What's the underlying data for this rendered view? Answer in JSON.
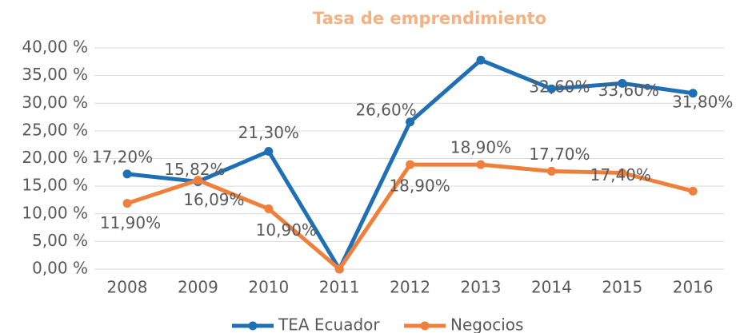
{
  "chart_data": {
    "type": "line",
    "title": "Tasa de emprendimiento",
    "categories": [
      "2008",
      "2009",
      "2010",
      "2011",
      "2012",
      "2013",
      "2014",
      "2015",
      "2016"
    ],
    "series": [
      {
        "name": "TEA Ecuador",
        "color": "#1f6fb5",
        "values": [
          17.2,
          15.82,
          21.3,
          0,
          26.6,
          37.8,
          32.6,
          33.6,
          31.8
        ],
        "value_labels": [
          "17,20%",
          "15,82%",
          "21,30%",
          null,
          "26,60%",
          null,
          "32,60%",
          "33,60%",
          "31,80%"
        ]
      },
      {
        "name": "Negocios",
        "color": "#f07f3c",
        "values": [
          11.9,
          16.09,
          10.9,
          0,
          18.9,
          18.9,
          17.7,
          17.4,
          14.1
        ],
        "value_labels": [
          "11,90%",
          "16,09%",
          "10,90%",
          null,
          "18,90%",
          "18,90%",
          "17,70%",
          "17,40%",
          null
        ]
      }
    ],
    "ylim": [
      0,
      40
    ],
    "yticks": [
      {
        "value": 0,
        "label": "0,00 %"
      },
      {
        "value": 5,
        "label": "5,00 %"
      },
      {
        "value": 10,
        "label": "10,00 %"
      },
      {
        "value": 15,
        "label": "15,00 %"
      },
      {
        "value": 20,
        "label": "20,00 %"
      },
      {
        "value": 25,
        "label": "25,00 %"
      },
      {
        "value": 30,
        "label": "30,00 %"
      },
      {
        "value": 35,
        "label": "35,00 %"
      },
      {
        "value": 40,
        "label": "40,00 %"
      }
    ],
    "grid": true,
    "legend": "bottom"
  }
}
